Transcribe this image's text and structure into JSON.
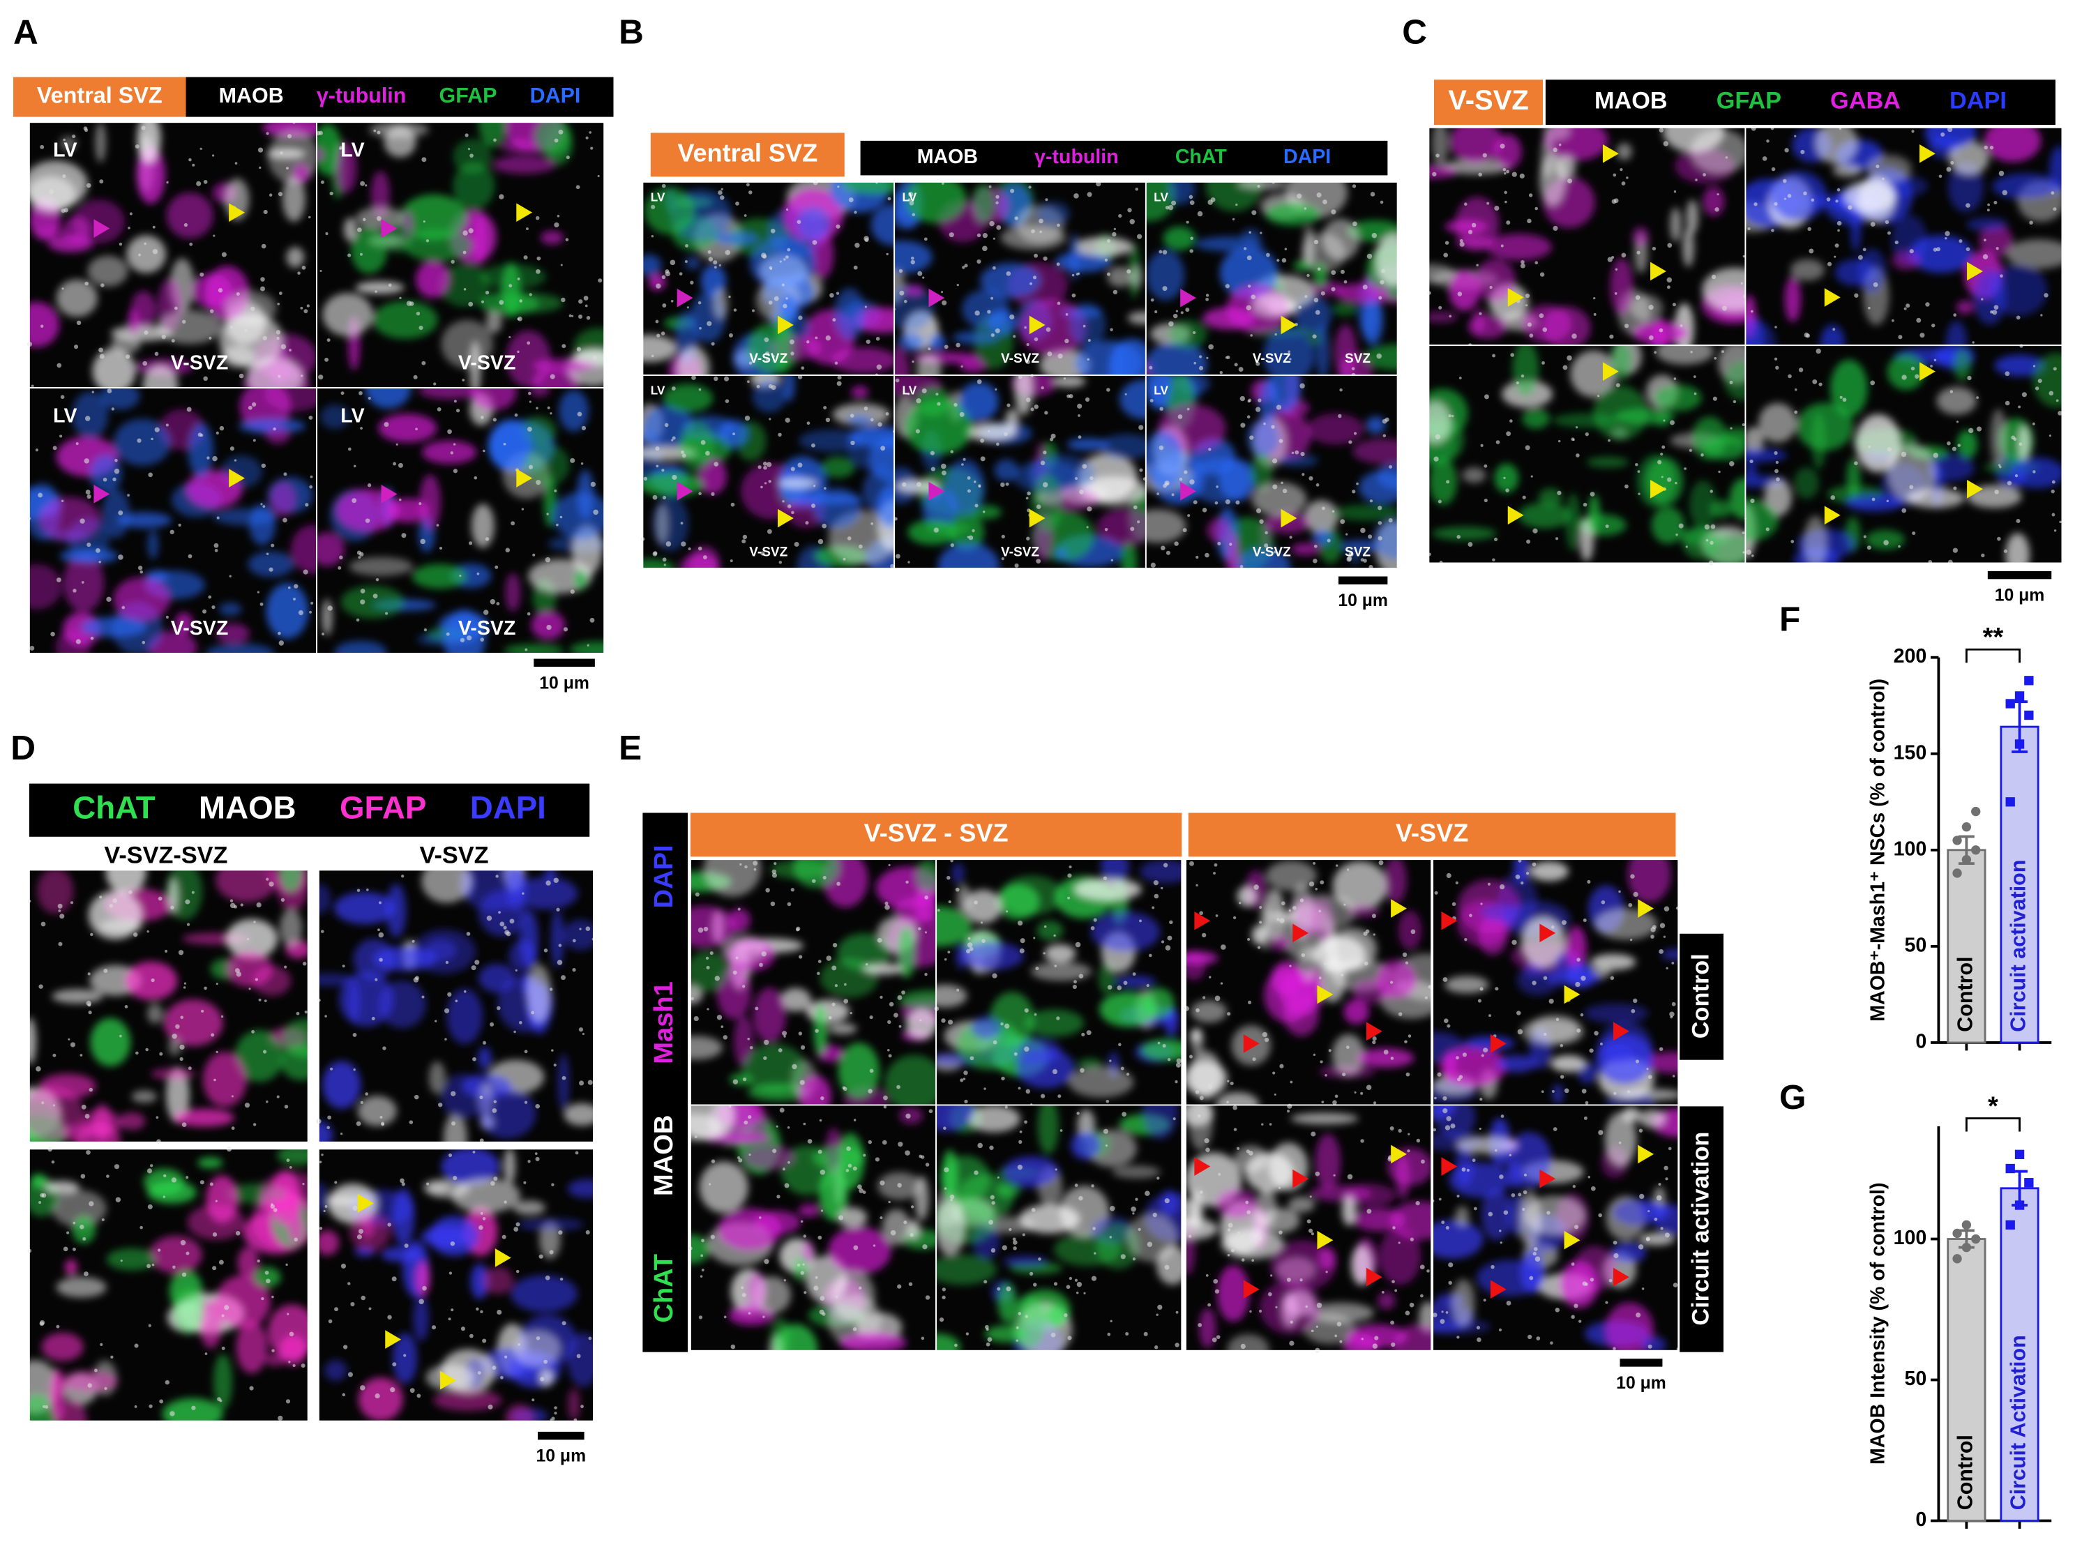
{
  "panels": [
    {
      "label": "A",
      "region": "Ventral SVZ",
      "channels": [
        {
          "name": "MAOB",
          "color": "#ffffff"
        },
        {
          "name": "γ-tubulin",
          "color": "#e020e0"
        },
        {
          "name": "GFAP",
          "color": "#20c040"
        },
        {
          "name": "DAPI",
          "color": "#2a6cff"
        }
      ],
      "tiles": [
        [
          "LV",
          "V-SVZ"
        ],
        [
          "LV",
          "V-SVZ"
        ],
        [
          "LV",
          "V-SVZ"
        ],
        [
          "LV",
          "V-SVZ"
        ]
      ],
      "scale_bar": "10 μm"
    },
    {
      "label": "B",
      "region": "Ventral SVZ",
      "channels": [
        {
          "name": "MAOB",
          "color": "#ffffff"
        },
        {
          "name": "γ-tubulin",
          "color": "#e020e0"
        },
        {
          "name": "ChAT",
          "color": "#20c040"
        },
        {
          "name": "DAPI",
          "color": "#2a6cff"
        }
      ],
      "tiles": [
        [
          "LV",
          "V-SVZ"
        ],
        [
          "LV",
          "V-SVZ"
        ],
        [
          "LV",
          "V-SVZ",
          "SVZ"
        ],
        [
          "LV",
          "V-SVZ"
        ],
        [
          "LV",
          "V-SVZ"
        ],
        [
          "LV",
          "V-SVZ",
          "SVZ"
        ]
      ],
      "scale_bar": "10 μm"
    },
    {
      "label": "C",
      "region": "V-SVZ",
      "channels": [
        {
          "name": "MAOB",
          "color": "#ffffff"
        },
        {
          "name": "GFAP",
          "color": "#20c040"
        },
        {
          "name": "GABA",
          "color": "#e020e0"
        },
        {
          "name": "DAPI",
          "color": "#2a3cff"
        }
      ],
      "scale_bar": "10 μm"
    },
    {
      "label": "D",
      "channels": [
        {
          "name": "ChAT",
          "color": "#30e050"
        },
        {
          "name": "MAOB",
          "color": "#ffffff"
        },
        {
          "name": "GFAP",
          "color": "#ff30d0"
        },
        {
          "name": "DAPI",
          "color": "#3a3cff"
        }
      ],
      "columns": [
        "V-SVZ-SVZ",
        "V-SVZ"
      ],
      "scale_bar": "10 μm"
    },
    {
      "label": "E",
      "columns": [
        "V-SVZ - SVZ",
        "V-SVZ"
      ],
      "channels": [
        {
          "name": "DAPI",
          "color": "#3a3cff"
        },
        {
          "name": "Mash1",
          "color": "#e020e0"
        },
        {
          "name": "MAOB",
          "color": "#ffffff"
        },
        {
          "name": "ChAT",
          "color": "#30e050"
        }
      ],
      "rows": [
        "Control",
        "Circuit activation"
      ],
      "scale_bar": "10 μm"
    }
  ],
  "chart_data": [
    {
      "type": "bar",
      "panel": "F",
      "ylabel": "MAOB⁺-Mash1⁺ NSCs (% of control)",
      "categories": [
        "Control",
        "Circuit activation"
      ],
      "values": [
        100,
        164
      ],
      "errors": [
        7,
        13
      ],
      "points": [
        [
          88,
          95,
          100,
          105,
          112,
          120
        ],
        [
          125,
          155,
          170,
          176,
          180,
          188
        ]
      ],
      "colors": [
        "#cfcfcf",
        "#c8c8f4"
      ],
      "point_colors": [
        "#707070",
        "#1a1aee"
      ],
      "label_colors": [
        "#000000",
        "#2020d0"
      ],
      "significance": "**",
      "ylim": [
        0,
        200
      ],
      "yticks": [
        0,
        50,
        100,
        150,
        200
      ]
    },
    {
      "type": "bar",
      "panel": "G",
      "ylabel": "MAOB Intensity (% of control)",
      "categories": [
        "Control",
        "Circuit Activation"
      ],
      "values": [
        100,
        118
      ],
      "errors": [
        3,
        6
      ],
      "points": [
        [
          93,
          97,
          100,
          102,
          105
        ],
        [
          105,
          112,
          120,
          125,
          130
        ]
      ],
      "colors": [
        "#cfcfcf",
        "#c8c8f4"
      ],
      "point_colors": [
        "#707070",
        "#1a1aee"
      ],
      "label_colors": [
        "#000000",
        "#2020d0"
      ],
      "significance": "*",
      "ylim": [
        0,
        140
      ],
      "yticks": [
        0,
        50,
        100
      ]
    }
  ]
}
